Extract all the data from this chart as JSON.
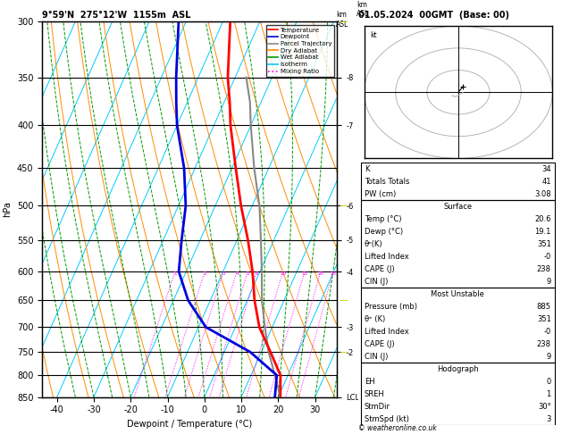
{
  "title_left": "9°59'N  275°12'W  1155m  ASL",
  "title_right": "01.05.2024  00GMT  (Base: 00)",
  "xlabel": "Dewpoint / Temperature (°C)",
  "ylabel_left": "hPa",
  "pressure_levels": [
    300,
    350,
    400,
    450,
    500,
    550,
    600,
    650,
    700,
    750,
    800,
    850
  ],
  "pressure_min": 300,
  "pressure_max": 850,
  "temp_min": -44,
  "temp_max": 36,
  "skew_factor": 45.0,
  "temp_profile_p": [
    850,
    800,
    750,
    700,
    650,
    600,
    550,
    500,
    450,
    400,
    375,
    350,
    300
  ],
  "temp_profile_t": [
    20.6,
    18.0,
    12.5,
    6.5,
    2.0,
    -2.0,
    -7.0,
    -13.0,
    -19.0,
    -25.5,
    -28.5,
    -32.0,
    -38.0
  ],
  "dewp_profile_p": [
    850,
    800,
    750,
    700,
    650,
    600,
    550,
    500,
    450,
    400,
    375,
    350,
    300
  ],
  "dewp_profile_t": [
    19.1,
    17.0,
    7.0,
    -8.0,
    -16.0,
    -22.0,
    -25.0,
    -28.0,
    -33.0,
    -40.0,
    -43.0,
    -46.0,
    -52.0
  ],
  "parcel_profile_p": [
    850,
    800,
    750,
    700,
    650,
    600,
    550,
    500,
    450,
    400,
    375,
    350
  ],
  "parcel_profile_t": [
    20.6,
    16.5,
    12.0,
    8.0,
    4.0,
    0.5,
    -3.5,
    -8.0,
    -14.0,
    -20.0,
    -23.0,
    -27.0
  ],
  "mixing_ratio_values": [
    1,
    2,
    3,
    4,
    5,
    6,
    10,
    15,
    20,
    25
  ],
  "km_tick_data": [
    [
      350,
      "-8"
    ],
    [
      400,
      "-7"
    ],
    [
      500,
      "-6"
    ],
    [
      550,
      "-5"
    ],
    [
      600,
      "-4"
    ],
    [
      700,
      "-3"
    ],
    [
      750,
      "-2"
    ],
    [
      850,
      "LCL"
    ]
  ],
  "stats_K": "34",
  "stats_TT": "41",
  "stats_PW": "3.08",
  "stats_surf_temp": "20.6",
  "stats_surf_dewp": "19.1",
  "stats_surf_theta": "351",
  "stats_surf_LI": "-0",
  "stats_surf_CAPE": "238",
  "stats_surf_CIN": "9",
  "stats_mu_pres": "885",
  "stats_mu_theta": "351",
  "stats_mu_LI": "-0",
  "stats_mu_CAPE": "238",
  "stats_mu_CIN": "9",
  "stats_hodo_EH": "0",
  "stats_hodo_SREH": "1",
  "stats_hodo_StmDir": "30°",
  "stats_hodo_StmSpd": "3",
  "col_temp": "#FF0000",
  "col_dewp": "#0000DD",
  "col_parcel": "#888888",
  "col_dryadiab": "#FF8C00",
  "col_wetadiab": "#009900",
  "col_isotherm": "#00CCFF",
  "col_mixratio": "#FF00FF",
  "col_yellow": "#CCCC00",
  "legend_labels": [
    "Temperature",
    "Dewpoint",
    "Parcel Trajectory",
    "Dry Adiabat",
    "Wet Adiabat",
    "Isotherm",
    "Mixing Ratio"
  ],
  "legend_colors": [
    "#FF0000",
    "#0000DD",
    "#888888",
    "#FF8C00",
    "#009900",
    "#00CCFF",
    "#FF00FF"
  ],
  "legend_styles": [
    "solid",
    "solid",
    "solid",
    "solid",
    "solid",
    "solid",
    "dotted"
  ]
}
